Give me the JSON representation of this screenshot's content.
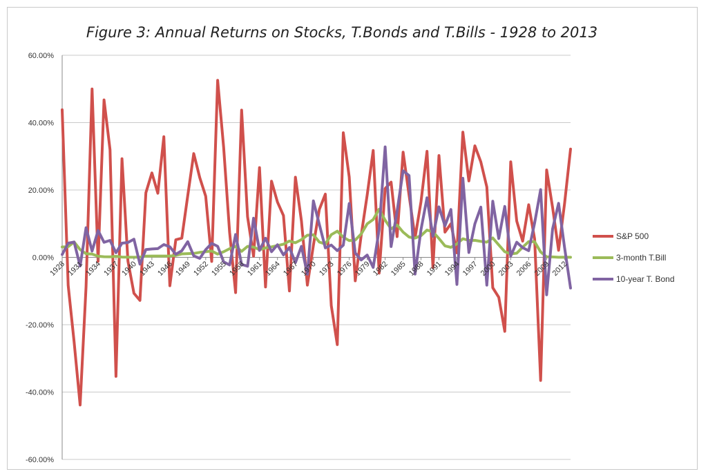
{
  "chart_data": {
    "type": "line",
    "title": "Figure 3: Annual Returns on Stocks, T.Bonds and T.Bills - 1928 to 2013",
    "xlabel": "",
    "ylabel": "",
    "ylim": [
      -0.6,
      0.6
    ],
    "yticks": [
      "60.00%",
      "40.00%",
      "20.00%",
      "0.00%",
      "-20.00%",
      "-40.00%",
      "-60.00%"
    ],
    "ytick_values": [
      0.6,
      0.4,
      0.2,
      0.0,
      -0.2,
      -0.4,
      -0.6
    ],
    "xticks": [
      "1928",
      "1931",
      "1934",
      "1937",
      "1940",
      "1943",
      "1946",
      "1949",
      "1952",
      "1955",
      "1958",
      "1961",
      "1964",
      "1967",
      "1970",
      "1973",
      "1976",
      "1979",
      "1982",
      "1985",
      "1988",
      "1991",
      "1994",
      "1997",
      "2000",
      "2003",
      "2006",
      "2009",
      "2012"
    ],
    "x": [
      1928,
      1929,
      1930,
      1931,
      1932,
      1933,
      1934,
      1935,
      1936,
      1937,
      1938,
      1939,
      1940,
      1941,
      1942,
      1943,
      1944,
      1945,
      1946,
      1947,
      1948,
      1949,
      1950,
      1951,
      1952,
      1953,
      1954,
      1955,
      1956,
      1957,
      1958,
      1959,
      1960,
      1961,
      1962,
      1963,
      1964,
      1965,
      1966,
      1967,
      1968,
      1969,
      1970,
      1971,
      1972,
      1973,
      1974,
      1975,
      1976,
      1977,
      1978,
      1979,
      1980,
      1981,
      1982,
      1983,
      1984,
      1985,
      1986,
      1987,
      1988,
      1989,
      1990,
      1991,
      1992,
      1993,
      1994,
      1995,
      1996,
      1997,
      1998,
      1999,
      2000,
      2001,
      2002,
      2003,
      2004,
      2005,
      2006,
      2007,
      2008,
      2009,
      2010,
      2011,
      2012,
      2013
    ],
    "grid": true,
    "legend_position": "right",
    "series": [
      {
        "name": "S&P 500",
        "color": "#d0504c",
        "values": [
          0.4381,
          -0.083,
          -0.2512,
          -0.4384,
          -0.0864,
          0.4998,
          -0.0119,
          0.4674,
          0.3194,
          -0.3534,
          0.2928,
          -0.011,
          -0.1067,
          -0.1277,
          0.1917,
          0.2506,
          0.1903,
          0.3582,
          -0.0843,
          0.052,
          0.057,
          0.183,
          0.3081,
          0.2368,
          0.1815,
          -0.0121,
          0.5256,
          0.326,
          0.0744,
          -0.1046,
          0.4372,
          0.1206,
          0.0034,
          0.2664,
          -0.0881,
          0.2261,
          0.1642,
          0.124,
          -0.0997,
          0.238,
          0.1081,
          -0.0824,
          0.0356,
          0.1422,
          0.1876,
          -0.1431,
          -0.259,
          0.37,
          0.2383,
          -0.0698,
          0.0651,
          0.1852,
          0.3174,
          -0.047,
          0.2042,
          0.2234,
          0.0615,
          0.3124,
          0.1849,
          0.0581,
          0.1654,
          0.3148,
          -0.0306,
          0.3023,
          0.0749,
          0.0997,
          0.0133,
          0.372,
          0.2268,
          0.331,
          0.2834,
          0.2089,
          -0.0903,
          -0.1185,
          -0.2197,
          0.2836,
          0.1074,
          0.0483,
          0.1561,
          0.0548,
          -0.3655,
          0.2594,
          0.1482,
          0.021,
          0.1589,
          0.3215
        ]
      },
      {
        "name": "3-month T.Bill",
        "color": "#9bbb59",
        "values": [
          0.0308,
          0.0316,
          0.0455,
          0.0231,
          0.0107,
          0.0096,
          0.0032,
          0.0018,
          0.0017,
          0.003,
          0.0008,
          0.0004,
          0.0003,
          0.0008,
          0.0034,
          0.0038,
          0.0038,
          0.0038,
          0.0038,
          0.0057,
          0.0102,
          0.011,
          0.0117,
          0.0148,
          0.0167,
          0.0189,
          0.0096,
          0.0166,
          0.0256,
          0.0323,
          0.0178,
          0.0326,
          0.0305,
          0.0227,
          0.0278,
          0.0311,
          0.0351,
          0.039,
          0.0484,
          0.0433,
          0.0526,
          0.0656,
          0.0669,
          0.0454,
          0.0395,
          0.0673,
          0.0778,
          0.0599,
          0.0497,
          0.0513,
          0.0693,
          0.0994,
          0.1122,
          0.143,
          0.1101,
          0.0845,
          0.0961,
          0.0749,
          0.0604,
          0.0572,
          0.0645,
          0.0811,
          0.0755,
          0.0561,
          0.0341,
          0.0298,
          0.0399,
          0.0552,
          0.0502,
          0.0505,
          0.0473,
          0.0451,
          0.0576,
          0.0367,
          0.0166,
          0.0103,
          0.0123,
          0.0301,
          0.0468,
          0.0464,
          0.0159,
          0.0014,
          0.0013,
          0.0003,
          0.0005,
          0.0003
        ]
      },
      {
        "name": "10-year T. Bond",
        "color": "#8064a2",
        "values": [
          0.0084,
          0.042,
          0.0454,
          -0.0256,
          0.0879,
          0.0186,
          0.0796,
          0.0447,
          0.0502,
          0.0138,
          0.0421,
          0.0441,
          0.054,
          -0.0202,
          0.0229,
          0.0249,
          0.0258,
          0.038,
          0.0313,
          0.0092,
          0.0195,
          0.0466,
          0.0043,
          -0.003,
          0.0227,
          0.0414,
          0.0329,
          -0.0134,
          -0.0226,
          0.068,
          -0.021,
          -0.0265,
          0.1164,
          0.0206,
          0.0569,
          0.0168,
          0.0373,
          0.0072,
          0.0291,
          -0.0158,
          0.0327,
          -0.0501,
          0.1675,
          0.0979,
          0.0282,
          0.0366,
          0.0199,
          0.0361,
          0.1598,
          0.0129,
          -0.0078,
          0.0067,
          -0.0299,
          0.082,
          0.3281,
          0.032,
          0.1373,
          0.2571,
          0.2428,
          -0.0496,
          0.0822,
          0.1769,
          0.0624,
          0.15,
          0.0936,
          0.1421,
          -0.0804,
          0.2348,
          0.0143,
          0.0994,
          0.1492,
          -0.0825,
          0.1666,
          0.0557,
          0.1512,
          0.0038,
          0.0449,
          0.0287,
          0.0196,
          0.1021,
          0.201,
          -0.1112,
          0.0846,
          0.1604,
          0.0297,
          -0.091
        ]
      }
    ]
  }
}
